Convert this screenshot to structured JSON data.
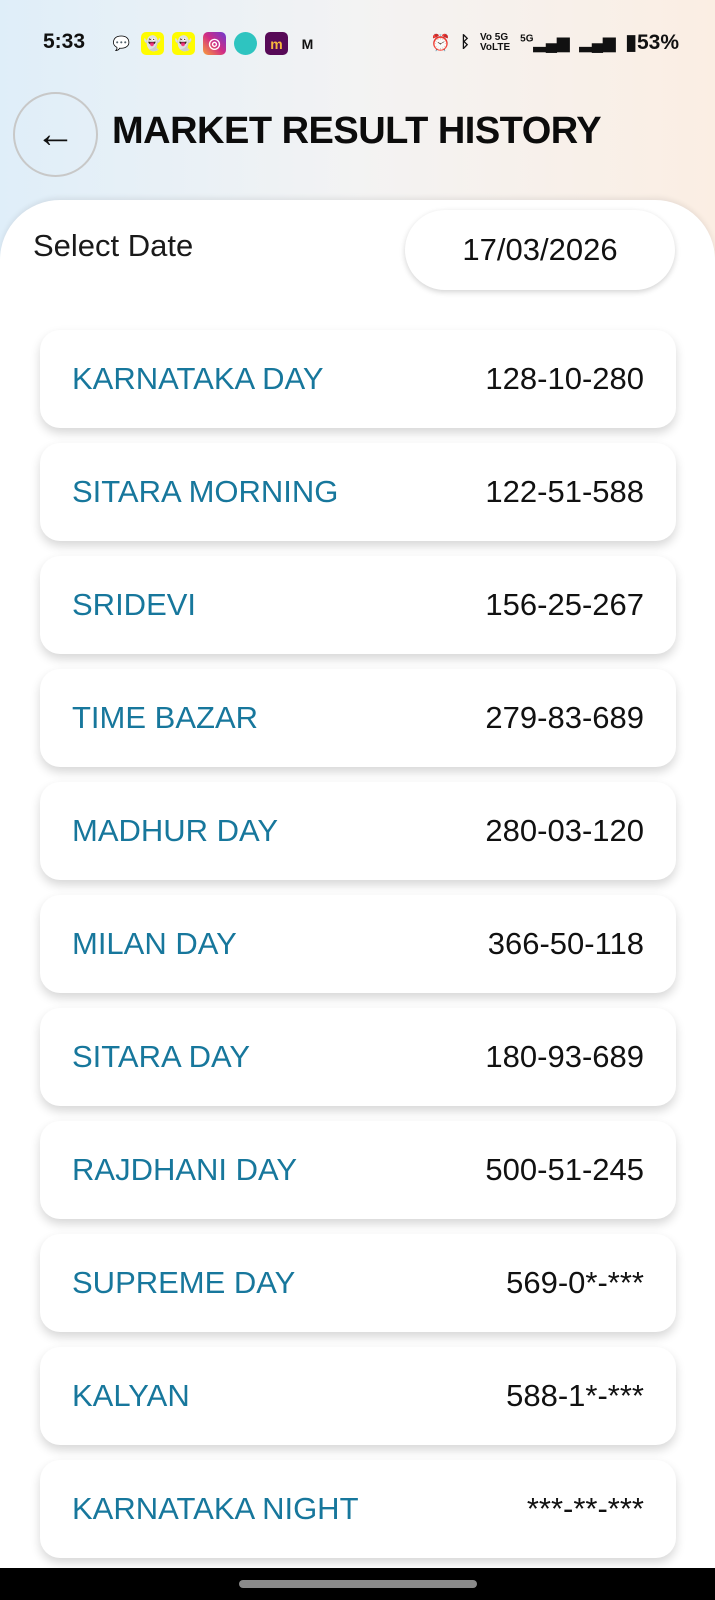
{
  "status_bar": {
    "time": "5:33",
    "battery": "53%",
    "app_icons": [
      "message-icon",
      "snapchat-icon",
      "snapchat-icon",
      "instagram-icon",
      "chat-bubble-icon",
      "meesho-icon",
      "gmail-icon"
    ],
    "system_icons": [
      "alarm-icon",
      "bluetooth-icon",
      "volte-5g-icon",
      "signal-5g-icon",
      "signal-icon",
      "battery-icon"
    ],
    "network_label": "5G"
  },
  "header": {
    "title": "MARKET RESULT HISTORY",
    "back_icon": "arrow-left-icon"
  },
  "date_selector": {
    "label": "Select Date",
    "value": "17/03/2026"
  },
  "results": [
    {
      "market": "KARNATAKA DAY",
      "result": "128-10-280"
    },
    {
      "market": "SITARA MORNING",
      "result": "122-51-588"
    },
    {
      "market": "SRIDEVI",
      "result": "156-25-267"
    },
    {
      "market": "TIME BAZAR",
      "result": "279-83-689"
    },
    {
      "market": "MADHUR DAY",
      "result": "280-03-120"
    },
    {
      "market": "MILAN DAY",
      "result": "366-50-118"
    },
    {
      "market": "SITARA DAY",
      "result": "180-93-689"
    },
    {
      "market": "RAJDHANI DAY",
      "result": "500-51-245"
    },
    {
      "market": "SUPREME DAY",
      "result": "569-0*-***"
    },
    {
      "market": "KALYAN",
      "result": "588-1*-***"
    },
    {
      "market": "KARNATAKA NIGHT",
      "result": "***-**-***"
    }
  ],
  "colors": {
    "market_name": "#17779c",
    "result": "#111111"
  }
}
